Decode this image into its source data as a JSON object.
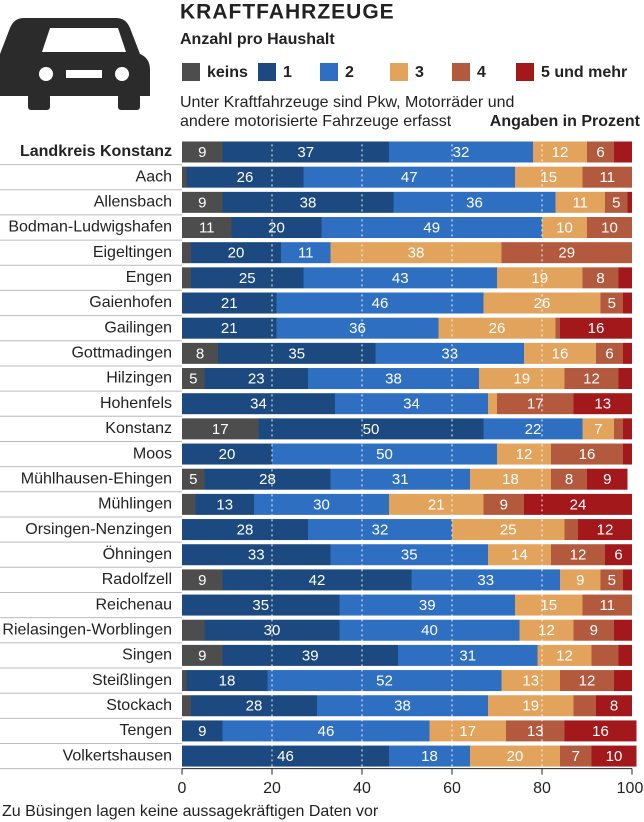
{
  "chart_data": {
    "type": "stacked_bar_horizontal",
    "title": "KRAFTFAHRZEUGE",
    "subtitle": "Anzahl pro Haushalt",
    "note": [
      "Unter Kraftfahrzeuge sind Pkw, Motorräder und",
      "andere motorisierte Fahrzeuge erfasst"
    ],
    "unit_note": "Angaben in Prozent",
    "footnote": "Zu Büsingen lagen keine aussagekräftigen Daten vor",
    "categories": [
      "Landkreis Konstanz",
      "Aach",
      "Allensbach",
      "Bodman-Ludwigshafen",
      "Eigeltingen",
      "Engen",
      "Gaienhofen",
      "Gailingen",
      "Gottmadingen",
      "Hilzingen",
      "Hohenfels",
      "Konstanz",
      "Moos",
      "Mühlhausen-Ehingen",
      "Mühlingen",
      "Orsingen-Nenzingen",
      "Öhningen",
      "Radolfzell",
      "Reichenau",
      "Rielasingen-Worblingen",
      "Singen",
      "Steißlingen",
      "Stockach",
      "Tengen",
      "Volkertshausen"
    ],
    "series": [
      {
        "name": "keins",
        "color": "#4d4d4d",
        "values": [
          9,
          1,
          9,
          11,
          2,
          2,
          0,
          0,
          8,
          5,
          0,
          17,
          0,
          5,
          3,
          0,
          0,
          9,
          0,
          5,
          9,
          1,
          2,
          0,
          0
        ],
        "value_labels": [
          "9",
          null,
          "9",
          "11",
          null,
          null,
          null,
          null,
          "8",
          "5",
          null,
          "17",
          null,
          "5",
          null,
          null,
          null,
          "9",
          null,
          null,
          "9",
          null,
          null,
          null,
          null
        ]
      },
      {
        "name": "1",
        "color": "#1c4a80",
        "values": [
          37,
          26,
          38,
          20,
          20,
          25,
          21,
          21,
          35,
          23,
          34,
          50,
          20,
          28,
          13,
          28,
          33,
          42,
          35,
          30,
          39,
          18,
          28,
          9,
          46
        ],
        "value_labels": [
          "37",
          "26",
          "38",
          "20",
          "20",
          "25",
          "21",
          "21",
          "35",
          "23",
          "34",
          "50",
          "20",
          "28",
          "13",
          "28",
          "33",
          "42",
          "35",
          "30",
          "39",
          "18",
          "28",
          "9",
          "46"
        ]
      },
      {
        "name": "2",
        "color": "#2e6fc2",
        "values": [
          32,
          47,
          36,
          49,
          11,
          43,
          46,
          36,
          33,
          38,
          34,
          22,
          50,
          31,
          30,
          32,
          35,
          33,
          39,
          40,
          31,
          52,
          38,
          46,
          18
        ],
        "value_labels": [
          "32",
          "47",
          "36",
          "49",
          "11",
          "43",
          "46",
          "36",
          "33",
          "38",
          "34",
          "22",
          "50",
          "31",
          "30",
          "32",
          "35",
          "33",
          "39",
          "40",
          "31",
          "52",
          "38",
          "46",
          "18"
        ]
      },
      {
        "name": "3",
        "color": "#e2a35c",
        "values": [
          12,
          15,
          11,
          10,
          38,
          19,
          26,
          26,
          16,
          19,
          2,
          7,
          12,
          18,
          21,
          25,
          14,
          9,
          15,
          12,
          12,
          13,
          19,
          17,
          20
        ],
        "value_labels": [
          "12",
          "15",
          "11",
          "10",
          "38",
          "19",
          "26",
          "26",
          "16",
          "19",
          null,
          "7",
          "12",
          "18",
          "21",
          "25",
          "14",
          "9",
          "15",
          "12",
          "12",
          "13",
          "19",
          "17",
          "20"
        ]
      },
      {
        "name": "4",
        "color": "#b35a3e",
        "values": [
          6,
          11,
          5,
          10,
          29,
          8,
          5,
          1,
          6,
          12,
          17,
          2,
          16,
          8,
          9,
          3,
          12,
          5,
          11,
          9,
          6,
          12,
          5,
          13,
          7
        ],
        "value_labels": [
          "6",
          "11",
          "5",
          "10",
          "29",
          "8",
          "5",
          null,
          "6",
          "12",
          "17",
          null,
          "16",
          "8",
          "9",
          null,
          "12",
          "5",
          "11",
          "9",
          null,
          "12",
          null,
          "13",
          "7"
        ]
      },
      {
        "name": "5 und mehr",
        "color": "#a3191b",
        "values": [
          4,
          0,
          1,
          0,
          0,
          3,
          2,
          16,
          2,
          3,
          13,
          2,
          2,
          9,
          24,
          12,
          6,
          2,
          0,
          4,
          3,
          4,
          8,
          16,
          10
        ],
        "value_labels": [
          null,
          null,
          null,
          null,
          null,
          null,
          null,
          "16",
          null,
          null,
          "13",
          null,
          null,
          "9",
          "24",
          "12",
          "6",
          null,
          null,
          null,
          null,
          null,
          "8",
          "16",
          "10"
        ]
      }
    ],
    "xlim": [
      0,
      100
    ],
    "xticks": [
      0,
      20,
      40,
      60,
      80,
      100
    ],
    "grid": true
  }
}
